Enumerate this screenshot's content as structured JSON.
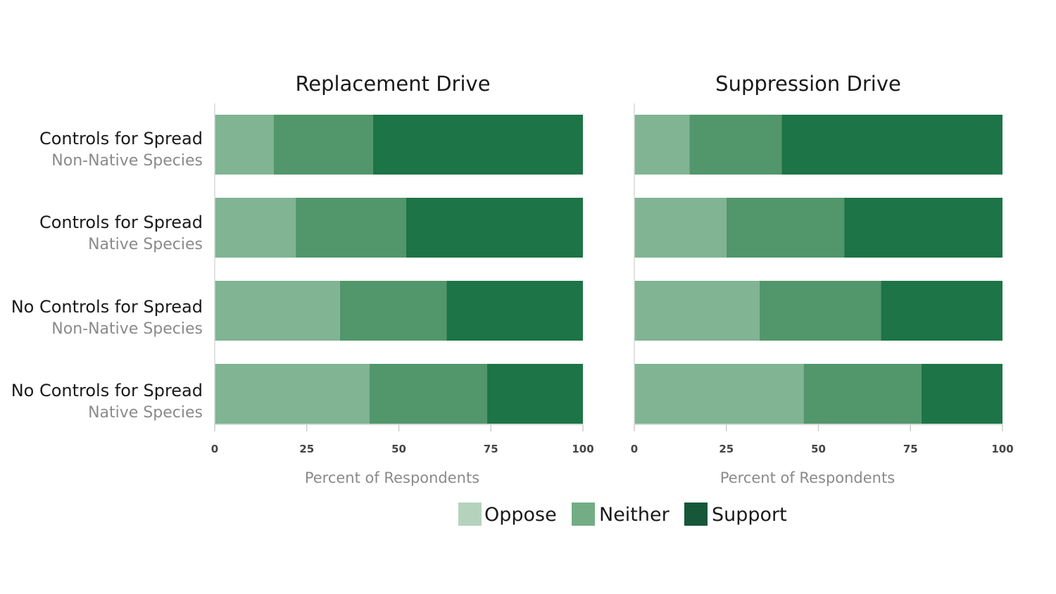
{
  "chart_data": {
    "type": "bar",
    "orientation": "horizontal",
    "stacked": true,
    "xlabel": "Percent of Respondents",
    "xlim": [
      0,
      100
    ],
    "x_ticks": [
      "0",
      "25",
      "50",
      "75",
      "100"
    ],
    "categories": [
      {
        "label": "Controls for Spread",
        "sublabel": "Non-Native Species"
      },
      {
        "label": "Controls for Spread",
        "sublabel": "Native Species"
      },
      {
        "label": "No Controls for Spread",
        "sublabel": "Non-Native Species"
      },
      {
        "label": "No Controls for Spread",
        "sublabel": "Native Species"
      }
    ],
    "legend": [
      {
        "name": "Oppose",
        "color": "#b5d3bc"
      },
      {
        "name": "Neither",
        "color": "#73ad85"
      },
      {
        "name": "Support",
        "color": "#16573a"
      }
    ],
    "panels": [
      {
        "title": "Replacement Drive",
        "series": [
          {
            "name": "Oppose",
            "values": [
              16,
              22,
              34,
              42
            ]
          },
          {
            "name": "Neither",
            "values": [
              27,
              30,
              29,
              32
            ]
          },
          {
            "name": "Support",
            "values": [
              57,
              48,
              37,
              26
            ]
          }
        ]
      },
      {
        "title": "Suppression Drive",
        "series": [
          {
            "name": "Oppose",
            "values": [
              15,
              25,
              34,
              46
            ]
          },
          {
            "name": "Neither",
            "values": [
              25,
              32,
              33,
              32
            ]
          },
          {
            "name": "Support",
            "values": [
              60,
              43,
              33,
              22
            ]
          }
        ]
      }
    ],
    "bar_colors": [
      "#80b493",
      "#52966b",
      "#1d7446"
    ]
  }
}
